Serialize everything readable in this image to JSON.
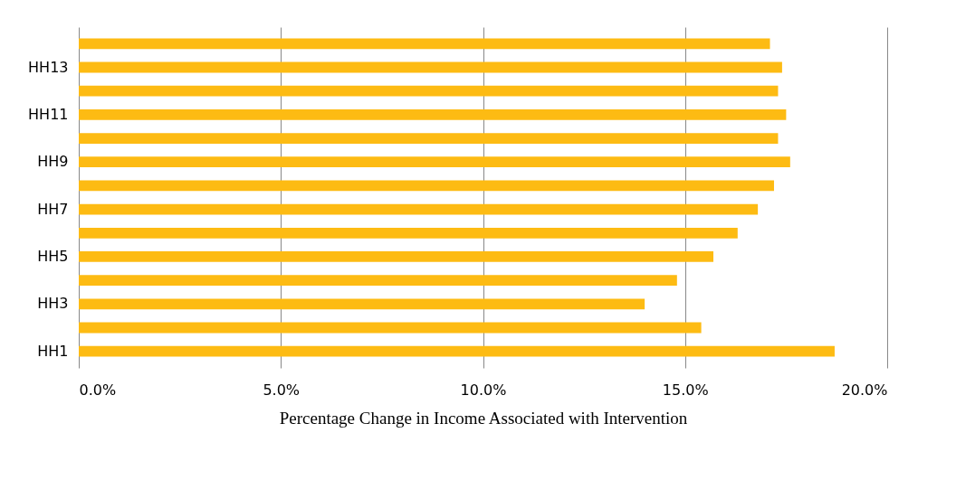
{
  "chart_data": {
    "type": "bar",
    "orientation": "horizontal",
    "xlabel": "Percentage Change in Income Associated with Intervention",
    "categories": [
      null,
      "HH13",
      null,
      "HH11",
      null,
      "HH9",
      null,
      "HH7",
      null,
      "HH5",
      null,
      "HH3",
      null,
      "HH1"
    ],
    "values": [
      17.1,
      17.4,
      17.3,
      17.5,
      17.3,
      17.6,
      17.2,
      16.8,
      16.3,
      15.7,
      14.8,
      14.0,
      15.4,
      18.7
    ],
    "color": "#fdbb13",
    "xlim": [
      0,
      20
    ],
    "xticks": [
      {
        "value": 0,
        "label": "0.0%"
      },
      {
        "value": 5,
        "label": "5.0%"
      },
      {
        "value": 10,
        "label": "10.0%"
      },
      {
        "value": 15,
        "label": "15.0%"
      },
      {
        "value": 20,
        "label": "20.0%"
      }
    ],
    "grid": "x"
  }
}
